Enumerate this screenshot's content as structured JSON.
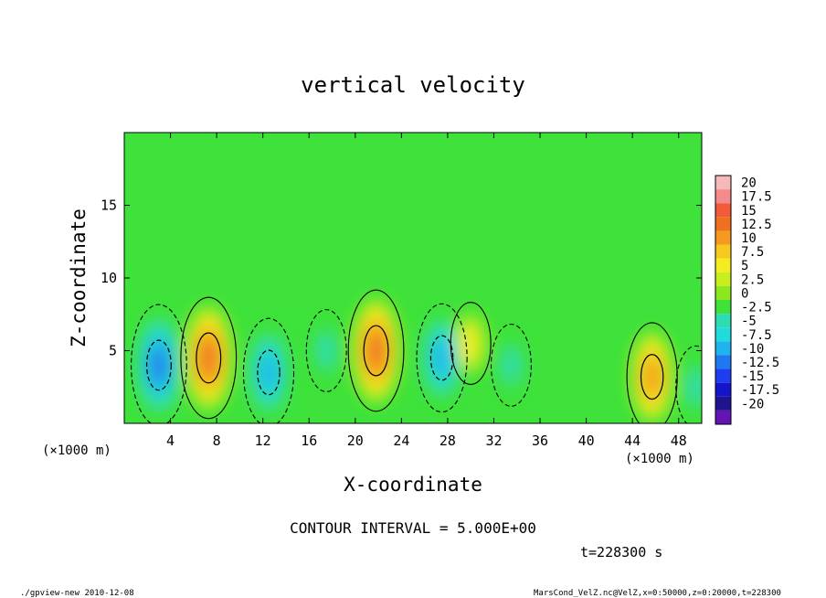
{
  "chart_data": {
    "type": "heatmap",
    "title": "vertical velocity",
    "xlabel": "X-coordinate",
    "ylabel": "Z-coordinate",
    "x_unit": "(×1000 m)",
    "xlim": [
      0,
      50
    ],
    "ylim": [
      0,
      20
    ],
    "x_ticks": [
      4,
      8,
      12,
      16,
      20,
      24,
      28,
      32,
      36,
      40,
      44,
      48
    ],
    "y_ticks": [
      5,
      10,
      15
    ],
    "colorbar": {
      "levels": [
        20,
        17.5,
        15,
        12.5,
        10,
        7.5,
        5,
        2.5,
        0,
        -2.5,
        -5,
        -7.5,
        -10,
        -12.5,
        -15,
        -17.5,
        -20
      ],
      "colors": [
        "#f6b9b9",
        "#f48a8a",
        "#f25a3a",
        "#f07020",
        "#f59a1e",
        "#f7c81e",
        "#f5ec1e",
        "#c8ee1e",
        "#8ce81e",
        "#3ee23a",
        "#2edcb4",
        "#1edcdc",
        "#1eb4f0",
        "#2078f0",
        "#1e3cf0",
        "#1414c8",
        "#1e1490",
        "#6414b4"
      ]
    },
    "cells": [
      {
        "x": 3.0,
        "z": 4.0,
        "value": -12.5
      },
      {
        "x": 7.3,
        "z": 4.5,
        "value": 12.5
      },
      {
        "x": 12.5,
        "z": 3.5,
        "value": -10
      },
      {
        "x": 17.5,
        "z": 5.0,
        "value": -5
      },
      {
        "x": 21.8,
        "z": 5.0,
        "value": 12.5
      },
      {
        "x": 27.5,
        "z": 4.5,
        "value": -10
      },
      {
        "x": 30.0,
        "z": 5.5,
        "value": 5
      },
      {
        "x": 33.5,
        "z": 4.0,
        "value": -5
      },
      {
        "x": 45.7,
        "z": 3.2,
        "value": 10
      },
      {
        "x": 49.5,
        "z": 2.5,
        "value": -5
      }
    ],
    "annotations": {
      "contour_interval": "CONTOUR INTERVAL = 5.000E+00",
      "time": "t=228300 s",
      "footer_left": "./gpview-new  2010-12-08",
      "footer_right": "MarsCond_VelZ.nc@VelZ,x=0:50000,z=0:20000,t=228300"
    }
  }
}
